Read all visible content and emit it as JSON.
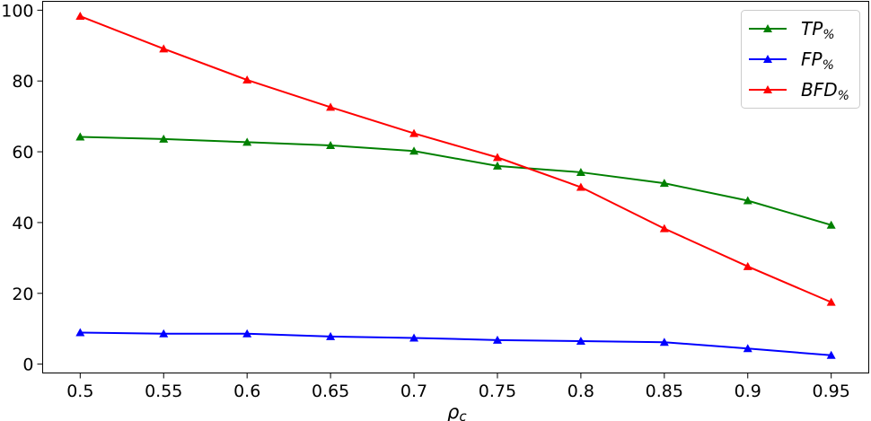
{
  "chart_data": {
    "type": "line",
    "x": [
      0.5,
      0.55,
      0.6,
      0.65,
      0.7,
      0.75,
      0.8,
      0.85,
      0.9,
      0.95
    ],
    "x_tick_labels": [
      "0.5",
      "0.55",
      "0.6",
      "0.65",
      "0.7",
      "0.75",
      "0.8",
      "0.85",
      "0.9",
      "0.95"
    ],
    "y_ticks": [
      0,
      20,
      40,
      60,
      80,
      100
    ],
    "y_tick_labels": [
      "0",
      "20",
      "40",
      "60",
      "80",
      "100"
    ],
    "xlim": [
      0.4775,
      0.9725
    ],
    "ylim": [
      -2.5,
      102.5
    ],
    "xlabel": {
      "main": "ρ",
      "sub": "c"
    },
    "ylabel": "",
    "grid": false,
    "legend_position": "top-right",
    "marker": "triangle-up",
    "series": [
      {
        "name": "TP%",
        "name_main": "TP",
        "name_sub": "%",
        "color": "#008000",
        "values": [
          64.2,
          63.6,
          62.7,
          61.8,
          60.2,
          56.0,
          54.2,
          51.1,
          46.2,
          39.3
        ]
      },
      {
        "name": "FP%",
        "name_main": "FP",
        "name_sub": "%",
        "color": "#0000ff",
        "values": [
          8.9,
          8.6,
          8.6,
          7.8,
          7.4,
          6.8,
          6.5,
          6.2,
          4.4,
          2.5
        ]
      },
      {
        "name": "BFD%",
        "name_main": "BFD",
        "name_sub": "%",
        "color": "#ff0000",
        "values": [
          98.3,
          89.1,
          80.3,
          72.6,
          65.2,
          58.4,
          50.0,
          38.3,
          27.6,
          17.5
        ]
      }
    ]
  }
}
